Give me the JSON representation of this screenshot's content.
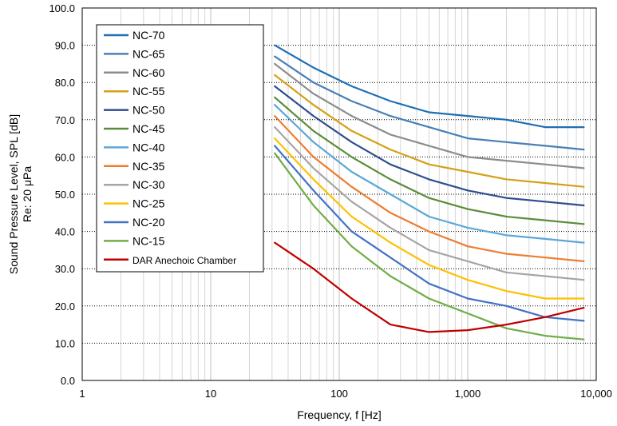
{
  "chart_data": {
    "type": "line",
    "title": "",
    "xlabel": "Frequency, f [Hz]",
    "ylabel_lines": [
      "Sound Pressure Level, SPL [dB]",
      "Re: 20 μPa"
    ],
    "x_scale": "log",
    "xlim": [
      1,
      10000
    ],
    "ylim": [
      0,
      100
    ],
    "x_ticks": [
      1,
      10,
      100,
      1000,
      10000
    ],
    "x_tick_labels": [
      "1",
      "10",
      "100",
      "1,000",
      "10,000"
    ],
    "y_ticks": [
      0,
      10,
      20,
      30,
      40,
      50,
      60,
      70,
      80,
      90,
      100
    ],
    "y_tick_labels": [
      "0.0",
      "10.0",
      "20.0",
      "30.0",
      "40.0",
      "50.0",
      "60.0",
      "70.0",
      "80.0",
      "90.0",
      "100.0"
    ],
    "grid": true,
    "legend_position": "top-left",
    "x": [
      31.5,
      63,
      125,
      250,
      500,
      1000,
      2000,
      4000,
      8000
    ],
    "series": [
      {
        "name": "NC-70",
        "color": "#1f6fb5",
        "values": [
          90,
          84,
          79,
          75,
          72,
          71,
          70,
          68,
          68
        ]
      },
      {
        "name": "NC-65",
        "color": "#4a7fb5",
        "values": [
          87,
          80,
          75,
          71,
          68,
          65,
          64,
          63,
          62
        ]
      },
      {
        "name": "NC-60",
        "color": "#8c8c8c",
        "values": [
          85,
          77,
          71,
          66,
          63,
          60,
          59,
          58,
          57
        ]
      },
      {
        "name": "NC-55",
        "color": "#d4a017",
        "values": [
          82,
          74,
          67,
          62,
          58,
          56,
          54,
          53,
          52
        ]
      },
      {
        "name": "NC-50",
        "color": "#2e4d8f",
        "values": [
          79,
          71,
          64,
          58,
          54,
          51,
          49,
          48,
          47
        ]
      },
      {
        "name": "NC-45",
        "color": "#5b8c3a",
        "values": [
          76,
          67,
          60,
          54,
          49,
          46,
          44,
          43,
          42
        ]
      },
      {
        "name": "NC-40",
        "color": "#5ba7d9",
        "values": [
          74,
          64,
          56,
          50,
          44,
          41,
          39,
          38,
          37
        ]
      },
      {
        "name": "NC-35",
        "color": "#ed7d31",
        "values": [
          71,
          60,
          52,
          45,
          40,
          36,
          34,
          33,
          32
        ]
      },
      {
        "name": "NC-30",
        "color": "#a5a5a5",
        "values": [
          68,
          57,
          48,
          41,
          35,
          32,
          29,
          28,
          27
        ]
      },
      {
        "name": "NC-25",
        "color": "#ffc000",
        "values": [
          65,
          54,
          44,
          37,
          31,
          27,
          24,
          22,
          22
        ]
      },
      {
        "name": "NC-20",
        "color": "#4472c4",
        "values": [
          63,
          51,
          40,
          33,
          26,
          22,
          20,
          17,
          16
        ]
      },
      {
        "name": "NC-15",
        "color": "#70ad47",
        "values": [
          61,
          47,
          36,
          28,
          22,
          18,
          14,
          12,
          11
        ]
      },
      {
        "name": "DAR Anechoic Chamber",
        "color": "#c00000",
        "values": [
          37,
          30,
          22,
          15,
          13,
          13.5,
          15,
          17,
          19.5
        ]
      }
    ]
  }
}
